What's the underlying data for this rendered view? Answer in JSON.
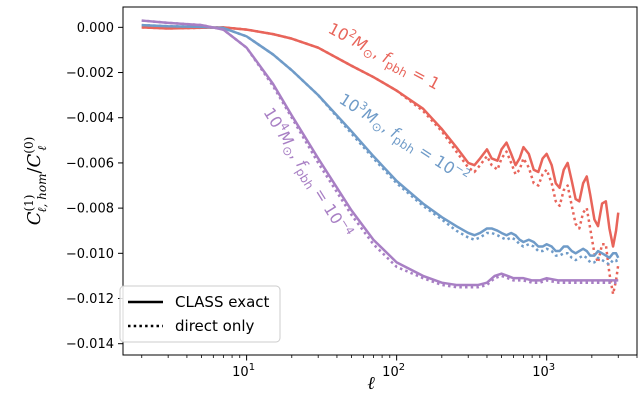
{
  "chart_data": {
    "type": "line",
    "xscale": "log",
    "xlim": [
      1.5,
      4000
    ],
    "ylim": [
      -0.0145,
      0.0009
    ],
    "xlabel": "ℓ",
    "ylabel": "C(1)ℓ,hom / C(0)ℓ",
    "ylabel_parts": {
      "c1": "C",
      "sup1": "(1)",
      "sub1": "ℓ, hom",
      "slash": "/",
      "c2": "C",
      "sup2": "(0)",
      "sub2": "ℓ"
    },
    "y_ticks": [
      0.0,
      -0.002,
      -0.004,
      -0.006,
      -0.008,
      -0.01,
      -0.012,
      -0.014
    ],
    "y_tick_labels": [
      "0.000",
      "−0.002",
      "−0.004",
      "−0.006",
      "−0.008",
      "−0.010",
      "−0.012",
      "−0.014"
    ],
    "x_ticks": [
      {
        "value": 10,
        "base": "10",
        "exp": "1"
      },
      {
        "value": 100,
        "base": "10",
        "exp": "2"
      },
      {
        "value": 1000,
        "base": "10",
        "exp": "3"
      }
    ],
    "legend": {
      "placement": "lower-left",
      "entries": [
        {
          "label": "CLASS exact",
          "style": "solid"
        },
        {
          "label": "direct only",
          "style": "dotted"
        }
      ]
    },
    "series": [
      {
        "id": "red",
        "color": "#e8645a",
        "annotation": {
          "mass_base": "10",
          "mass_exp": "2",
          "mass_unit": "M",
          "sun": "⊙",
          "sep": ", ",
          "f": "f",
          "f_sub": "pbh",
          "eq": " = ",
          "val_base": "1",
          "val_exp": ""
        },
        "exact": [
          [
            2,
            0.0
          ],
          [
            3,
            -5e-05
          ],
          [
            5,
            -2e-05
          ],
          [
            7,
            0.0
          ],
          [
            10,
            -0.0001
          ],
          [
            15,
            -0.0003
          ],
          [
            20,
            -0.0005
          ],
          [
            30,
            -0.0009
          ],
          [
            50,
            -0.0017
          ],
          [
            70,
            -0.0022
          ],
          [
            100,
            -0.0028
          ],
          [
            150,
            -0.0036
          ],
          [
            200,
            -0.0045
          ],
          [
            250,
            -0.0053
          ],
          [
            300,
            -0.006
          ],
          [
            330,
            -0.0061
          ],
          [
            360,
            -0.0058
          ],
          [
            400,
            -0.0054
          ],
          [
            430,
            -0.0058
          ],
          [
            470,
            -0.0059
          ],
          [
            500,
            -0.0054
          ],
          [
            540,
            -0.0051
          ],
          [
            580,
            -0.0056
          ],
          [
            620,
            -0.0061
          ],
          [
            660,
            -0.0058
          ],
          [
            700,
            -0.0053
          ],
          [
            760,
            -0.0056
          ],
          [
            820,
            -0.0063
          ],
          [
            880,
            -0.0064
          ],
          [
            940,
            -0.0058
          ],
          [
            1000,
            -0.0056
          ],
          [
            1080,
            -0.0061
          ],
          [
            1150,
            -0.0069
          ],
          [
            1220,
            -0.0071
          ],
          [
            1300,
            -0.0063
          ],
          [
            1380,
            -0.006
          ],
          [
            1470,
            -0.0068
          ],
          [
            1560,
            -0.0076
          ],
          [
            1650,
            -0.0077
          ],
          [
            1750,
            -0.0069
          ],
          [
            1850,
            -0.0066
          ],
          [
            1950,
            -0.0074
          ],
          [
            2080,
            -0.0085
          ],
          [
            2200,
            -0.0088
          ],
          [
            2340,
            -0.0078
          ],
          [
            2480,
            -0.0077
          ],
          [
            2620,
            -0.0089
          ],
          [
            2770,
            -0.0097
          ],
          [
            2900,
            -0.009
          ],
          [
            3000,
            -0.0082
          ]
        ],
        "direct": [
          [
            2,
            0.0
          ],
          [
            3,
            -5e-05
          ],
          [
            5,
            -2e-05
          ],
          [
            7,
            0.0
          ],
          [
            10,
            -0.0001
          ],
          [
            15,
            -0.0003
          ],
          [
            20,
            -0.0005
          ],
          [
            30,
            -0.0009
          ],
          [
            50,
            -0.0017
          ],
          [
            70,
            -0.0022
          ],
          [
            100,
            -0.0028
          ],
          [
            150,
            -0.0037
          ],
          [
            200,
            -0.0046
          ],
          [
            250,
            -0.0055
          ],
          [
            300,
            -0.0062
          ],
          [
            330,
            -0.0064
          ],
          [
            360,
            -0.0061
          ],
          [
            400,
            -0.0057
          ],
          [
            430,
            -0.0061
          ],
          [
            470,
            -0.0063
          ],
          [
            500,
            -0.0058
          ],
          [
            540,
            -0.0055
          ],
          [
            580,
            -0.006
          ],
          [
            620,
            -0.0065
          ],
          [
            660,
            -0.0063
          ],
          [
            700,
            -0.0058
          ],
          [
            760,
            -0.0062
          ],
          [
            820,
            -0.0069
          ],
          [
            880,
            -0.007
          ],
          [
            940,
            -0.0065
          ],
          [
            1000,
            -0.0063
          ],
          [
            1080,
            -0.0069
          ],
          [
            1150,
            -0.0077
          ],
          [
            1220,
            -0.0079
          ],
          [
            1300,
            -0.0072
          ],
          [
            1380,
            -0.007
          ],
          [
            1470,
            -0.0079
          ],
          [
            1560,
            -0.0087
          ],
          [
            1650,
            -0.0089
          ],
          [
            1750,
            -0.0082
          ],
          [
            1850,
            -0.008
          ],
          [
            1950,
            -0.0089
          ],
          [
            2080,
            -0.01
          ],
          [
            2200,
            -0.0104
          ],
          [
            2340,
            -0.0096
          ],
          [
            2480,
            -0.0096
          ],
          [
            2620,
            -0.0109
          ],
          [
            2770,
            -0.0118
          ],
          [
            2900,
            -0.0112
          ],
          [
            3000,
            -0.0105
          ]
        ]
      },
      {
        "id": "blue",
        "color": "#6f9bc8",
        "annotation": {
          "mass_base": "10",
          "mass_exp": "3",
          "mass_unit": "M",
          "sun": "⊙",
          "sep": ", ",
          "f": "f",
          "f_sub": "pbh",
          "eq": " = ",
          "val_base": "10",
          "val_exp": "−2"
        },
        "exact": [
          [
            2,
            0.0001
          ],
          [
            3,
            5e-05
          ],
          [
            5,
            2e-05
          ],
          [
            7,
            -3e-05
          ],
          [
            10,
            -0.0004
          ],
          [
            15,
            -0.0012
          ],
          [
            20,
            -0.0019
          ],
          [
            30,
            -0.003
          ],
          [
            50,
            -0.0046
          ],
          [
            70,
            -0.0057
          ],
          [
            100,
            -0.0068
          ],
          [
            150,
            -0.0078
          ],
          [
            200,
            -0.0084
          ],
          [
            250,
            -0.0088
          ],
          [
            300,
            -0.0091
          ],
          [
            330,
            -0.0092
          ],
          [
            360,
            -0.0091
          ],
          [
            400,
            -0.0089
          ],
          [
            430,
            -0.0089
          ],
          [
            470,
            -0.009
          ],
          [
            500,
            -0.0091
          ],
          [
            540,
            -0.0092
          ],
          [
            580,
            -0.0091
          ],
          [
            620,
            -0.0092
          ],
          [
            660,
            -0.0094
          ],
          [
            700,
            -0.0095
          ],
          [
            760,
            -0.0094
          ],
          [
            820,
            -0.0095
          ],
          [
            880,
            -0.0097
          ],
          [
            940,
            -0.0097
          ],
          [
            1000,
            -0.0096
          ],
          [
            1080,
            -0.0097
          ],
          [
            1150,
            -0.0099
          ],
          [
            1220,
            -0.0099
          ],
          [
            1300,
            -0.0097
          ],
          [
            1380,
            -0.0097
          ],
          [
            1470,
            -0.0099
          ],
          [
            1560,
            -0.01
          ],
          [
            1650,
            -0.0099
          ],
          [
            1750,
            -0.0098
          ],
          [
            1850,
            -0.0099
          ],
          [
            1950,
            -0.0101
          ],
          [
            2080,
            -0.0101
          ],
          [
            2200,
            -0.0099
          ],
          [
            2340,
            -0.01
          ],
          [
            2480,
            -0.0101
          ],
          [
            2620,
            -0.0102
          ],
          [
            2770,
            -0.01
          ],
          [
            2900,
            -0.01
          ],
          [
            3000,
            -0.0102
          ]
        ],
        "direct": [
          [
            2,
            0.0001
          ],
          [
            3,
            5e-05
          ],
          [
            5,
            2e-05
          ],
          [
            7,
            -3e-05
          ],
          [
            10,
            -0.0004
          ],
          [
            15,
            -0.0012
          ],
          [
            20,
            -0.0019
          ],
          [
            30,
            -0.003
          ],
          [
            50,
            -0.0047
          ],
          [
            70,
            -0.0058
          ],
          [
            100,
            -0.0069
          ],
          [
            150,
            -0.0079
          ],
          [
            200,
            -0.0085
          ],
          [
            250,
            -0.009
          ],
          [
            300,
            -0.0093
          ],
          [
            330,
            -0.0094
          ],
          [
            360,
            -0.0093
          ],
          [
            400,
            -0.0091
          ],
          [
            430,
            -0.0091
          ],
          [
            470,
            -0.0092
          ],
          [
            500,
            -0.0093
          ],
          [
            540,
            -0.0094
          ],
          [
            580,
            -0.0093
          ],
          [
            620,
            -0.0094
          ],
          [
            660,
            -0.0096
          ],
          [
            700,
            -0.0097
          ],
          [
            760,
            -0.0096
          ],
          [
            820,
            -0.0097
          ],
          [
            880,
            -0.0099
          ],
          [
            940,
            -0.0099
          ],
          [
            1000,
            -0.0098
          ],
          [
            1080,
            -0.0099
          ],
          [
            1150,
            -0.0101
          ],
          [
            1220,
            -0.0101
          ],
          [
            1300,
            -0.01
          ],
          [
            1380,
            -0.01
          ],
          [
            1470,
            -0.0102
          ],
          [
            1560,
            -0.0103
          ],
          [
            1650,
            -0.0102
          ],
          [
            1750,
            -0.0101
          ],
          [
            1850,
            -0.0102
          ],
          [
            1950,
            -0.0104
          ],
          [
            2080,
            -0.0104
          ],
          [
            2200,
            -0.0102
          ],
          [
            2340,
            -0.0103
          ],
          [
            2480,
            -0.0104
          ],
          [
            2620,
            -0.0105
          ],
          [
            2770,
            -0.0103
          ],
          [
            2900,
            -0.0103
          ],
          [
            3000,
            -0.0105
          ]
        ]
      },
      {
        "id": "purple",
        "color": "#a87fc4",
        "annotation": {
          "mass_base": "10",
          "mass_exp": "4",
          "mass_unit": "M",
          "sun": "⊙",
          "sep": ", ",
          "f": "f",
          "f_sub": "pbh",
          "eq": " = ",
          "val_base": "10",
          "val_exp": "−4"
        },
        "exact": [
          [
            2,
            0.0003
          ],
          [
            3,
            0.0002
          ],
          [
            5,
            0.0001
          ],
          [
            7,
            -0.0001
          ],
          [
            10,
            -0.0009
          ],
          [
            15,
            -0.0025
          ],
          [
            20,
            -0.0039
          ],
          [
            30,
            -0.0058
          ],
          [
            50,
            -0.0081
          ],
          [
            70,
            -0.0094
          ],
          [
            100,
            -0.0104
          ],
          [
            150,
            -0.011
          ],
          [
            200,
            -0.0113
          ],
          [
            250,
            -0.0114
          ],
          [
            300,
            -0.0114
          ],
          [
            350,
            -0.0114
          ],
          [
            400,
            -0.0113
          ],
          [
            450,
            -0.011
          ],
          [
            500,
            -0.0109
          ],
          [
            550,
            -0.011
          ],
          [
            600,
            -0.0111
          ],
          [
            700,
            -0.0111
          ],
          [
            800,
            -0.0112
          ],
          [
            900,
            -0.0112
          ],
          [
            1000,
            -0.0111
          ],
          [
            1200,
            -0.0112
          ],
          [
            1500,
            -0.0112
          ],
          [
            2000,
            -0.0112
          ],
          [
            2500,
            -0.0112
          ],
          [
            3000,
            -0.0112
          ]
        ],
        "direct": [
          [
            2,
            0.0003
          ],
          [
            3,
            0.0002
          ],
          [
            5,
            0.0001
          ],
          [
            7,
            -0.0001
          ],
          [
            10,
            -0.0009
          ],
          [
            15,
            -0.0026
          ],
          [
            20,
            -0.004
          ],
          [
            30,
            -0.006
          ],
          [
            50,
            -0.0083
          ],
          [
            70,
            -0.0096
          ],
          [
            100,
            -0.0106
          ],
          [
            150,
            -0.0111
          ],
          [
            200,
            -0.0114
          ],
          [
            250,
            -0.0115
          ],
          [
            300,
            -0.0115
          ],
          [
            350,
            -0.0115
          ],
          [
            400,
            -0.0114
          ],
          [
            450,
            -0.0111
          ],
          [
            500,
            -0.011
          ],
          [
            550,
            -0.0111
          ],
          [
            600,
            -0.0112
          ],
          [
            700,
            -0.0112
          ],
          [
            800,
            -0.0113
          ],
          [
            900,
            -0.0113
          ],
          [
            1000,
            -0.0112
          ],
          [
            1200,
            -0.0113
          ],
          [
            1500,
            -0.0113
          ],
          [
            2000,
            -0.0113
          ],
          [
            2500,
            -0.0113
          ],
          [
            3000,
            -0.0113
          ]
        ]
      }
    ]
  }
}
